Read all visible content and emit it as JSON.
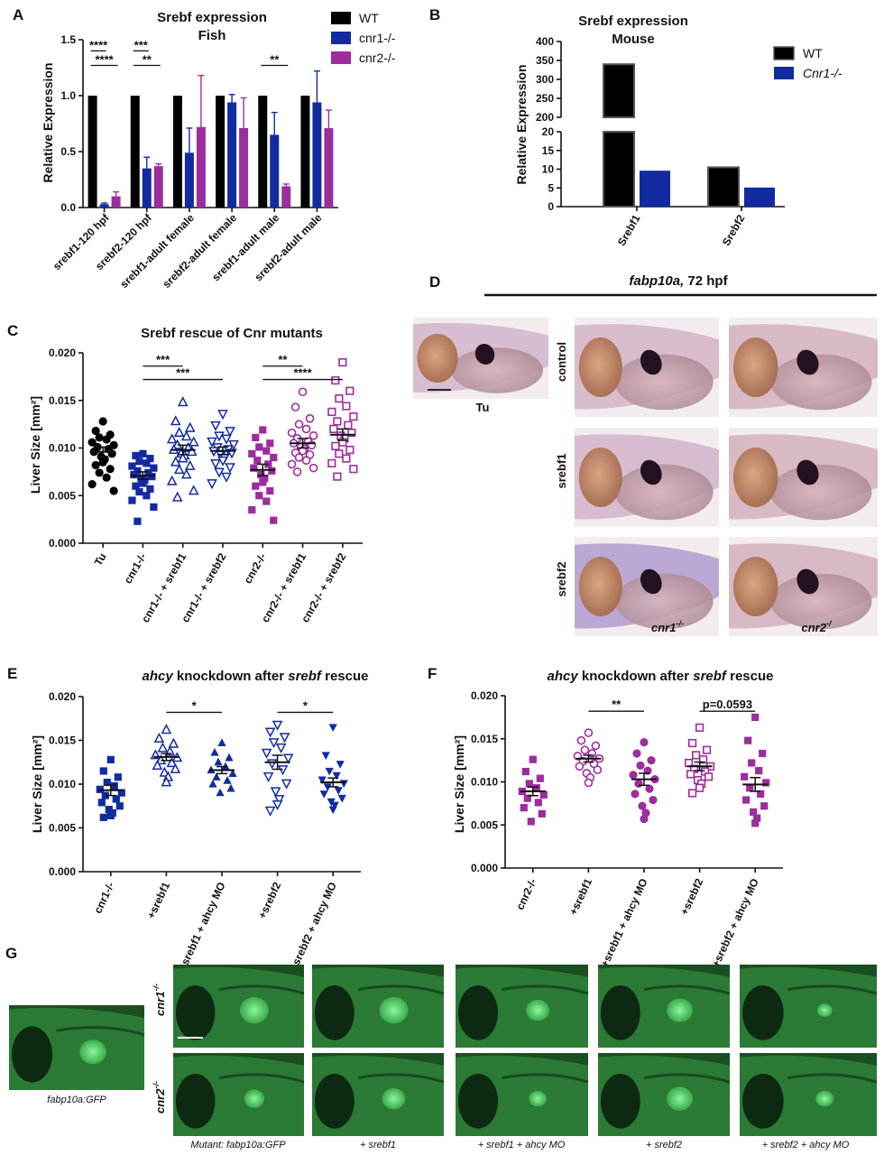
{
  "colors": {
    "wt": "#000000",
    "cnr1": "#132ba0",
    "cnr2": "#9b2e9c"
  },
  "panel_labels": {
    "a": "A",
    "b": "B",
    "c": "C",
    "d": "D",
    "e": "E",
    "f": "F",
    "g": "G"
  },
  "chart_data": [
    {
      "id": "A",
      "type": "bar",
      "title": "Srebf expression",
      "subtitle": "Fish",
      "ylabel": "Relative Expression",
      "ylim": [
        0,
        1.5
      ],
      "yticks": [
        "0.0",
        "0.5",
        "1.0",
        "1.5"
      ],
      "categories": [
        "srebf1-120 hpf",
        "srebf2-120 hpf",
        "srebf1-adult female",
        "srebf2-adult female",
        "srebf1-adult male",
        "srebf2-adult male"
      ],
      "series": [
        {
          "name": "WT",
          "values": [
            1.0,
            1.0,
            1.0,
            1.0,
            1.0,
            1.0
          ],
          "errors": [
            0,
            0,
            0,
            0,
            0,
            0
          ]
        },
        {
          "name": "cnr1-/-",
          "values": [
            0.03,
            0.35,
            0.49,
            0.94,
            0.65,
            0.94
          ],
          "errors": [
            0.01,
            0.1,
            0.22,
            0.07,
            0.2,
            0.28
          ]
        },
        {
          "name": "cnr2-/-",
          "values": [
            0.1,
            0.37,
            0.72,
            0.71,
            0.19,
            0.71
          ],
          "errors": [
            0.04,
            0.02,
            0.46,
            0.27,
            0.02,
            0.16
          ]
        }
      ],
      "significance": [
        {
          "label": "****",
          "from_group": 0,
          "from_series": 0,
          "to_group": 0,
          "to_series": 1,
          "y": 1.4
        },
        {
          "label": "****",
          "from_group": 0,
          "from_series": 0,
          "to_group": 0,
          "to_series": 2,
          "y": 1.27
        },
        {
          "label": "***",
          "from_group": 1,
          "from_series": 0,
          "to_group": 1,
          "to_series": 1,
          "y": 1.4
        },
        {
          "label": "**",
          "from_group": 1,
          "from_series": 0,
          "to_group": 1,
          "to_series": 2,
          "y": 1.27
        },
        {
          "label": "**",
          "from_group": 4,
          "from_series": 0,
          "to_group": 4,
          "to_series": 2,
          "y": 1.27
        }
      ]
    },
    {
      "id": "B",
      "type": "bar",
      "title": "Srebf expression",
      "subtitle": "Mouse",
      "ylabel": "Relative Expression",
      "axis_break": [
        20,
        200
      ],
      "ylim_lower": [
        0,
        20
      ],
      "ylim_upper": [
        200,
        400
      ],
      "yticks_lower": [
        "0",
        "5",
        "10",
        "15",
        "20"
      ],
      "yticks_upper": [
        "200",
        "250",
        "300",
        "350",
        "400"
      ],
      "categories": [
        "Srebf1",
        "Srebf2"
      ],
      "series": [
        {
          "name": "WT",
          "values": [
            340,
            10.5
          ]
        },
        {
          "name": "Cnr1-/-",
          "values": [
            9.6,
            5.1
          ]
        }
      ]
    },
    {
      "id": "C",
      "type": "scatter",
      "title": "Srebf rescue of Cnr mutants",
      "ylabel": "Liver Size [mm²]",
      "ylim": [
        0,
        0.02
      ],
      "yticks": [
        "0.000",
        "0.005",
        "0.010",
        "0.015",
        "0.020"
      ],
      "categories": [
        "Tu",
        "cnr1-/-",
        "cnr1-/- + srebf1",
        "cnr1-/- + srebf2",
        "cnr2-/-",
        "cnr2-/- + srebf1",
        "cnr2-/- + srebf2"
      ],
      "groups": [
        {
          "mean": 0.0096,
          "sem": 0.0005,
          "values": [
            0.0128,
            0.0118,
            0.0114,
            0.0111,
            0.0109,
            0.0106,
            0.0103,
            0.0101,
            0.0099,
            0.0096,
            0.0094,
            0.0091,
            0.0088,
            0.0085,
            0.0082,
            0.0078,
            0.0074,
            0.0069,
            0.0062,
            0.0055
          ]
        },
        {
          "mean": 0.0071,
          "sem": 0.0004,
          "values": [
            0.0094,
            0.0092,
            0.0089,
            0.0086,
            0.0084,
            0.0081,
            0.0079,
            0.0076,
            0.0074,
            0.0072,
            0.007,
            0.0068,
            0.0066,
            0.0063,
            0.006,
            0.0057,
            0.0054,
            0.005,
            0.0045,
            0.0038,
            0.0023
          ]
        },
        {
          "mean": 0.0098,
          "sem": 0.0005,
          "values": [
            0.0148,
            0.0128,
            0.0121,
            0.0116,
            0.0112,
            0.0109,
            0.0106,
            0.0103,
            0.01,
            0.0098,
            0.0096,
            0.0094,
            0.0092,
            0.0089,
            0.0085,
            0.0081,
            0.0077,
            0.0072,
            0.0065,
            0.0055,
            0.0048
          ]
        },
        {
          "mean": 0.0097,
          "sem": 0.0004,
          "values": [
            0.0136,
            0.0124,
            0.0118,
            0.0113,
            0.011,
            0.0107,
            0.0104,
            0.0101,
            0.0099,
            0.0097,
            0.0095,
            0.0093,
            0.009,
            0.0087,
            0.0084,
            0.008,
            0.0075,
            0.007,
            0.0063
          ]
        },
        {
          "mean": 0.0077,
          "sem": 0.0006,
          "values": [
            0.0119,
            0.0111,
            0.0105,
            0.0101,
            0.0097,
            0.0094,
            0.009,
            0.0087,
            0.0083,
            0.0079,
            0.0076,
            0.0072,
            0.0068,
            0.0064,
            0.006,
            0.0055,
            0.005,
            0.0044,
            0.0035,
            0.0024
          ]
        },
        {
          "mean": 0.0105,
          "sem": 0.0005,
          "values": [
            0.0159,
            0.0143,
            0.0131,
            0.0125,
            0.012,
            0.0116,
            0.0113,
            0.011,
            0.0107,
            0.0105,
            0.0103,
            0.0101,
            0.0099,
            0.0097,
            0.0095,
            0.0093,
            0.009,
            0.0087,
            0.0083,
            0.0079,
            0.0075
          ]
        },
        {
          "mean": 0.0114,
          "sem": 0.0006,
          "values": [
            0.019,
            0.0171,
            0.016,
            0.0152,
            0.0144,
            0.0138,
            0.0133,
            0.0128,
            0.0124,
            0.012,
            0.0116,
            0.0113,
            0.011,
            0.0106,
            0.0102,
            0.0098,
            0.0094,
            0.0089,
            0.0084,
            0.0078,
            0.007
          ]
        }
      ],
      "significance": [
        {
          "label": "***",
          "from": 1,
          "to": 2,
          "y": 0.0186
        },
        {
          "label": "***",
          "from": 1,
          "to": 3,
          "y": 0.0172
        },
        {
          "label": "**",
          "from": 4,
          "to": 5,
          "y": 0.0186
        },
        {
          "label": "****",
          "from": 4,
          "to": 6,
          "y": 0.0172
        }
      ]
    },
    {
      "id": "E",
      "type": "scatter",
      "title_italic": "ahcy",
      "title_mid": " knockdown after ",
      "title_italic2": "srebf",
      "title_end": " rescue",
      "ylabel": "Liver Size [mm²]",
      "ylim": [
        0,
        0.02
      ],
      "yticks": [
        "0.000",
        "0.005",
        "0.010",
        "0.015",
        "0.020"
      ],
      "categories": [
        "cnr1-/-",
        "+srebf1",
        "+srebf1 + ahcy MO",
        "+srebf2",
        "+srebf2 + ahcy MO"
      ],
      "groups": [
        {
          "mean": 0.0093,
          "sem": 0.0006,
          "values": [
            0.0128,
            0.0115,
            0.0108,
            0.0102,
            0.0098,
            0.0094,
            0.009,
            0.0087,
            0.0083,
            0.0079,
            0.0075,
            0.0071,
            0.0067,
            0.0064,
            0.0062
          ]
        },
        {
          "mean": 0.0131,
          "sem": 0.0004,
          "values": [
            0.0162,
            0.0152,
            0.0146,
            0.0141,
            0.0137,
            0.0133,
            0.013,
            0.0127,
            0.0124,
            0.0121,
            0.0117,
            0.0113,
            0.0108,
            0.0102
          ]
        },
        {
          "mean": 0.0116,
          "sem": 0.0004,
          "values": [
            0.0147,
            0.0136,
            0.013,
            0.0125,
            0.012,
            0.0116,
            0.0112,
            0.0108,
            0.0104,
            0.01,
            0.0095,
            0.009
          ]
        },
        {
          "mean": 0.0125,
          "sem": 0.0008,
          "values": [
            0.0168,
            0.016,
            0.0154,
            0.0148,
            0.0142,
            0.0136,
            0.013,
            0.0124,
            0.0117,
            0.0109,
            0.0101,
            0.0092,
            0.0083,
            0.0077,
            0.007
          ]
        },
        {
          "mean": 0.0102,
          "sem": 0.0005,
          "values": [
            0.0165,
            0.0133,
            0.0123,
            0.0115,
            0.011,
            0.0105,
            0.0101,
            0.0097,
            0.0093,
            0.0089,
            0.0084,
            0.008,
            0.0076,
            0.0071
          ]
        }
      ],
      "significance": [
        {
          "label": "*",
          "from": 1,
          "to": 2,
          "y": 0.0182
        },
        {
          "label": "*",
          "from": 3,
          "to": 4,
          "y": 0.0182
        }
      ]
    },
    {
      "id": "F",
      "type": "scatter",
      "title_italic": "ahcy",
      "title_mid": " knockdown after ",
      "title_italic2": "srebf",
      "title_end": " rescue",
      "ylabel": "Liver Size [mm²]",
      "ylim": [
        0,
        0.02
      ],
      "yticks": [
        "0.000",
        "0.005",
        "0.010",
        "0.015",
        "0.020"
      ],
      "categories": [
        "cnr2-/-",
        "+srebf1",
        "+srebf1 + ahcy MO",
        "+srebf2",
        "+srebf2 + ahcy MO"
      ],
      "groups": [
        {
          "mean": 0.0089,
          "sem": 0.0005,
          "values": [
            0.0126,
            0.0112,
            0.0104,
            0.0098,
            0.0093,
            0.0089,
            0.0085,
            0.0081,
            0.0076,
            0.007,
            0.0063,
            0.0054
          ]
        },
        {
          "mean": 0.0127,
          "sem": 0.0004,
          "values": [
            0.0157,
            0.0148,
            0.0142,
            0.0137,
            0.0133,
            0.013,
            0.0127,
            0.0124,
            0.0121,
            0.0118,
            0.0114,
            0.011,
            0.0105,
            0.0099
          ]
        },
        {
          "mean": 0.0103,
          "sem": 0.0007,
          "values": [
            0.0146,
            0.0133,
            0.0125,
            0.0119,
            0.0113,
            0.0108,
            0.0103,
            0.0098,
            0.0092,
            0.0086,
            0.0079,
            0.0072,
            0.0064,
            0.0057
          ]
        },
        {
          "mean": 0.0118,
          "sem": 0.0005,
          "values": [
            0.0163,
            0.0145,
            0.0137,
            0.0131,
            0.0126,
            0.0122,
            0.0118,
            0.0115,
            0.0112,
            0.0109,
            0.0106,
            0.0102,
            0.0098,
            0.0093,
            0.0087
          ]
        },
        {
          "mean": 0.0097,
          "sem": 0.0008,
          "values": [
            0.0175,
            0.0148,
            0.0133,
            0.0122,
            0.0113,
            0.0106,
            0.0099,
            0.0093,
            0.0086,
            0.0079,
            0.0072,
            0.0065,
            0.0058,
            0.0052
          ]
        }
      ],
      "significance": [
        {
          "label": "**",
          "from": 1,
          "to": 2,
          "y": 0.0182
        },
        {
          "label": "p=0.0593",
          "from": 3,
          "to": 4,
          "y": 0.0182
        }
      ]
    }
  ],
  "panelD": {
    "title_gene": "fabp10a,",
    "title_stage": " 72 hpf",
    "wt_label": "Tu",
    "rows": [
      "control",
      "srebf1",
      "srebf2"
    ],
    "cols": [
      "cnr1",
      "cnr2"
    ],
    "col_sup": [
      "-/-",
      "-/"
    ]
  },
  "panelG": {
    "wt_caption": "fabp10a:GFP",
    "rows": [
      "cnr1",
      "cnr2"
    ],
    "row_sup": "-/-",
    "captions": [
      "Mutant: fabp10a:GFP",
      "+ srebf1",
      "+ srebf1 + ahcy MO",
      "+ srebf2",
      "+ srebf2 + ahcy MO"
    ]
  }
}
